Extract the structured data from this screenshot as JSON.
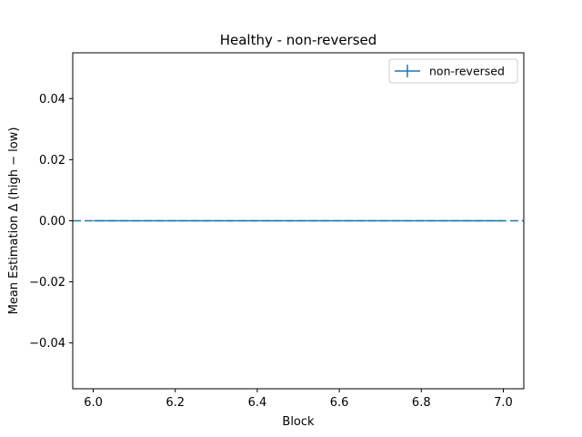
{
  "chart_data": {
    "type": "line",
    "title": "Healthy - non-reversed",
    "xlabel": "Block",
    "ylabel": "Mean Estimation Δ (high − low)",
    "xlim": [
      5.95,
      7.05
    ],
    "ylim": [
      -0.055,
      0.055
    ],
    "x_ticks": [
      6.0,
      6.2,
      6.4,
      6.6,
      6.8,
      7.0
    ],
    "x_tick_labels": [
      "6.0",
      "6.2",
      "6.4",
      "6.6",
      "6.8",
      "7.0"
    ],
    "y_ticks": [
      -0.04,
      -0.02,
      0.0,
      0.02,
      0.04
    ],
    "y_tick_labels": [
      "−0.04",
      "−0.02",
      "0.00",
      "0.02",
      "0.04"
    ],
    "grid": false,
    "legend_position": "upper-right",
    "series": [
      {
        "name": "non-reversed",
        "x": [
          6,
          7
        ],
        "y": [
          0.0,
          0.0
        ],
        "yerr": [
          0.0,
          0.0
        ],
        "color": "#1f77b4"
      }
    ],
    "reference_line": {
      "y": 0.0,
      "style": "dashed",
      "color": "#1f77b4"
    }
  }
}
